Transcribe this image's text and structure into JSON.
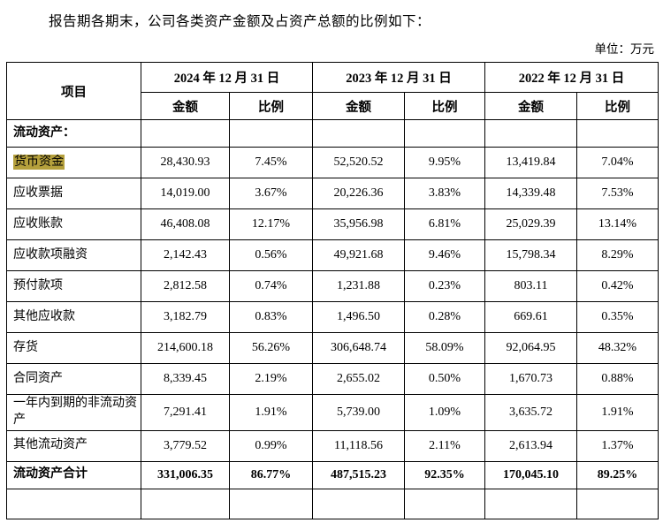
{
  "document": {
    "intro_text": "报告期各期末，公司各类资产金额及占资产总额的比例如下：",
    "unit_label": "单位：万元"
  },
  "table": {
    "item_header": "项目",
    "periods": [
      "2024 年 12 月 31 日",
      "2023 年 12 月 31 日",
      "2022 年 12 月 31 日"
    ],
    "sub_headers": [
      "金额",
      "比例",
      "金额",
      "比例",
      "金额",
      "比例"
    ],
    "highlight_color": "#b5a03c",
    "rows": [
      {
        "item": "流动资产：",
        "section": true,
        "values": [
          "",
          "",
          "",
          "",
          "",
          ""
        ]
      },
      {
        "item": "货币资金",
        "highlight": true,
        "values": [
          "28,430.93",
          "7.45%",
          "52,520.52",
          "9.95%",
          "13,419.84",
          "7.04%"
        ]
      },
      {
        "item": "应收票据",
        "values": [
          "14,019.00",
          "3.67%",
          "20,226.36",
          "3.83%",
          "14,339.48",
          "7.53%"
        ]
      },
      {
        "item": "应收账款",
        "values": [
          "46,408.08",
          "12.17%",
          "35,956.98",
          "6.81%",
          "25,029.39",
          "13.14%"
        ]
      },
      {
        "item": "应收款项融资",
        "values": [
          "2,142.43",
          "0.56%",
          "49,921.68",
          "9.46%",
          "15,798.34",
          "8.29%"
        ]
      },
      {
        "item": "预付款项",
        "values": [
          "2,812.58",
          "0.74%",
          "1,231.88",
          "0.23%",
          "803.11",
          "0.42%"
        ]
      },
      {
        "item": "其他应收款",
        "values": [
          "3,182.79",
          "0.83%",
          "1,496.50",
          "0.28%",
          "669.61",
          "0.35%"
        ]
      },
      {
        "item": "存货",
        "values": [
          "214,600.18",
          "56.26%",
          "306,648.74",
          "58.09%",
          "92,064.95",
          "48.32%"
        ]
      },
      {
        "item": "合同资产",
        "values": [
          "8,339.45",
          "2.19%",
          "2,655.02",
          "0.50%",
          "1,670.73",
          "0.88%"
        ]
      },
      {
        "item": "一年内到期的非流动资产",
        "values": [
          "7,291.41",
          "1.91%",
          "5,739.00",
          "1.09%",
          "3,635.72",
          "1.91%"
        ]
      },
      {
        "item": "其他流动资产",
        "values": [
          "3,779.52",
          "0.99%",
          "11,118.56",
          "2.11%",
          "2,613.94",
          "1.37%"
        ]
      },
      {
        "item": "流动资产合计",
        "total": true,
        "values": [
          "331,006.35",
          "86.77%",
          "487,515.23",
          "92.35%",
          "170,045.10",
          "89.25%"
        ]
      },
      {
        "item": "",
        "tail": true,
        "values": [
          "",
          "",
          "",
          "",
          "",
          ""
        ]
      }
    ]
  }
}
